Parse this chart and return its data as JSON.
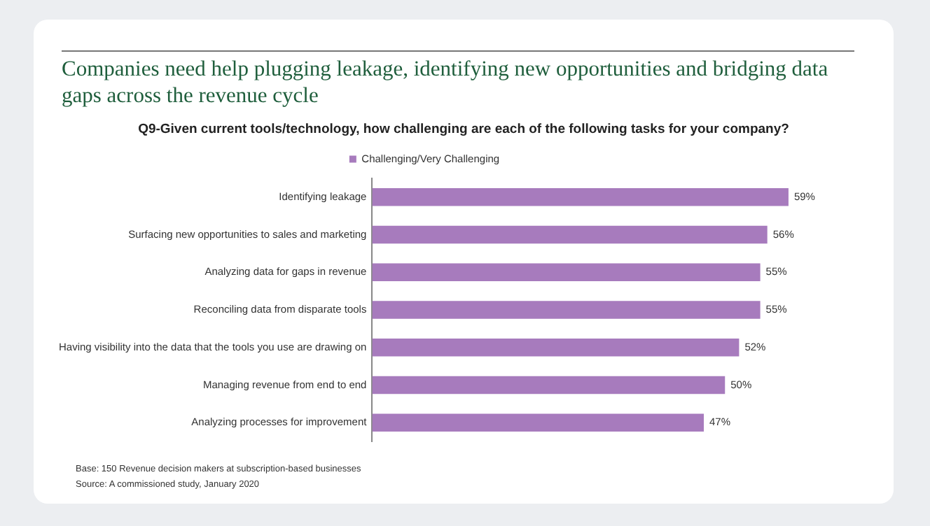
{
  "chart_data": {
    "type": "bar",
    "orientation": "horizontal",
    "title": "Companies need help plugging leakage, identifying new opportunities and bridging data gaps across the revenue cycle",
    "subtitle": "Q9-Given current tools/technology, how challenging are each of the following tasks for your company?",
    "categories": [
      "Identifying leakage",
      "Surfacing new opportunities to sales and marketing",
      "Analyzing data for gaps in revenue",
      "Reconciling data from disparate tools",
      "Having visibility into the data that the tools you use are drawing on",
      "Managing revenue from end to end",
      "Analyzing processes for improvement"
    ],
    "series": [
      {
        "name": "Challenging/Very Challenging",
        "color": "#a77bbd",
        "values": [
          59,
          56,
          55,
          55,
          52,
          50,
          47
        ],
        "value_labels": [
          "59%",
          "56%",
          "55%",
          "55%",
          "52%",
          "50%",
          "47%"
        ]
      }
    ],
    "tick_labels": "y",
    "grid": false,
    "legend": "top",
    "annotations": [
      "Base: 150 Revenue decision makers at subscription-based businesses",
      "Source: A commissioned study, January 2020"
    ]
  }
}
